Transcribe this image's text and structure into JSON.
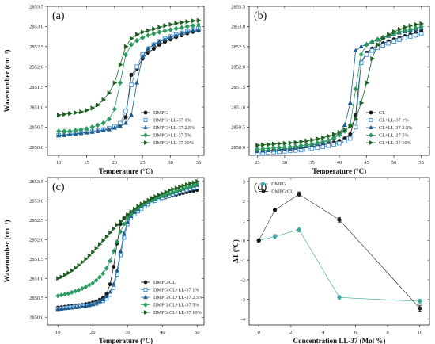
{
  "colors": {
    "black": "#1a1a1a",
    "blue_light": "#3f8fd2",
    "blue_dark": "#1f5c8c",
    "green_mid": "#2a9a5e",
    "green_dark": "#1f5f22",
    "teal": "#3aa6a2"
  },
  "chart_data": [
    {
      "id": "a",
      "type": "line",
      "panel_label": "(a)",
      "xlabel": "Temperature (°C)",
      "ylabel": "Wavenumber (cm⁻¹)",
      "xlim": [
        8,
        36
      ],
      "ylim": [
        2849.8,
        2853.5
      ],
      "xticks": [
        10,
        15,
        20,
        25,
        30,
        35
      ],
      "yticks": [
        2850.0,
        2850.5,
        2851.0,
        2851.5,
        2852.0,
        2852.5,
        2853.0,
        2853.5
      ],
      "ytick_labels": [
        "2850.0",
        "2850.5",
        "2851.0",
        "2851.5",
        "2852.0",
        "2852.5",
        "2853.0",
        "2853.5"
      ],
      "legend_position": "lower-right",
      "x": [
        10,
        11,
        12,
        13,
        14,
        15,
        16,
        17,
        18,
        19,
        20,
        21,
        22,
        23,
        24,
        25,
        26,
        27,
        28,
        29,
        30,
        31,
        32,
        33,
        34,
        35
      ],
      "series": [
        {
          "name": "DMPG",
          "marker": "circle",
          "color": "#1a1a1a",
          "values": [
            2850.3,
            2850.3,
            2850.32,
            2850.34,
            2850.35,
            2850.37,
            2850.39,
            2850.4,
            2850.43,
            2850.46,
            2850.5,
            2850.55,
            2850.75,
            2851.8,
            2851.95,
            2852.2,
            2852.35,
            2852.45,
            2852.55,
            2852.62,
            2852.68,
            2852.74,
            2852.78,
            2852.83,
            2852.87,
            2852.9
          ]
        },
        {
          "name": "DMPG+LL-37 1%",
          "marker": "square",
          "color": "#3f8fd2",
          "values": [
            2850.3,
            2850.31,
            2850.33,
            2850.34,
            2850.36,
            2850.38,
            2850.39,
            2850.41,
            2850.44,
            2850.47,
            2850.52,
            2850.6,
            2850.9,
            2851.55,
            2852.0,
            2852.3,
            2852.45,
            2852.55,
            2852.63,
            2852.7,
            2852.75,
            2852.8,
            2852.84,
            2852.88,
            2852.91,
            2852.95
          ]
        },
        {
          "name": "DMPG+LL-37 2.5%",
          "marker": "triangle-up",
          "color": "#1f5c8c",
          "values": [
            2850.3,
            2850.31,
            2850.32,
            2850.33,
            2850.35,
            2850.36,
            2850.38,
            2850.4,
            2850.42,
            2850.44,
            2850.48,
            2850.52,
            2850.6,
            2850.8,
            2851.6,
            2852.25,
            2852.45,
            2852.55,
            2852.62,
            2852.68,
            2852.73,
            2852.78,
            2852.82,
            2852.86,
            2852.9,
            2852.92
          ]
        },
        {
          "name": "DMPG+LL-37 5%",
          "marker": "diamond",
          "color": "#2a9a5e",
          "values": [
            2850.4,
            2850.4,
            2850.4,
            2850.42,
            2850.44,
            2850.46,
            2850.5,
            2850.55,
            2850.6,
            2850.7,
            2850.95,
            2851.6,
            2852.3,
            2852.55,
            2852.65,
            2852.72,
            2852.78,
            2852.82,
            2852.86,
            2852.89,
            2852.92,
            2852.95,
            2852.97,
            2853.0,
            2853.02,
            2853.04
          ]
        },
        {
          "name": "DMPG+LL-37 10%",
          "marker": "triangle-right",
          "color": "#1f5f22",
          "values": [
            2850.8,
            2850.82,
            2850.84,
            2850.86,
            2850.88,
            2850.92,
            2850.97,
            2851.05,
            2851.18,
            2851.35,
            2851.6,
            2852.05,
            2852.5,
            2852.7,
            2852.8,
            2852.86,
            2852.9,
            2852.94,
            2852.98,
            2853.02,
            2853.05,
            2853.08,
            2853.1,
            2853.12,
            2853.14,
            2853.15
          ]
        }
      ]
    },
    {
      "id": "b",
      "type": "line",
      "panel_label": "(b)",
      "xlabel": "Temperature (°C)",
      "ylabel": "",
      "xlim": [
        23.5,
        56.5
      ],
      "ylim": [
        2849.8,
        2853.5
      ],
      "xticks": [
        25,
        30,
        35,
        40,
        45,
        50,
        55
      ],
      "yticks": [
        2850.0,
        2850.5,
        2851.0,
        2851.5,
        2852.0,
        2852.5,
        2853.0,
        2853.5
      ],
      "ytick_labels": [
        "2850.0",
        "2850.5",
        "2851.0",
        "2851.5",
        "2852.0",
        "2852.5",
        "2853.0",
        "2853.5"
      ],
      "legend_position": "lower-right",
      "x": [
        25,
        26,
        27,
        28,
        29,
        30,
        31,
        32,
        33,
        34,
        35,
        36,
        37,
        38,
        39,
        40,
        41,
        42,
        43,
        44,
        45,
        46,
        47,
        48,
        49,
        50,
        51,
        52,
        53,
        54,
        55
      ],
      "series": [
        {
          "name": "CL",
          "marker": "circle",
          "color": "#1a1a1a",
          "values": [
            2849.9,
            2849.91,
            2849.92,
            2849.93,
            2849.94,
            2849.95,
            2849.96,
            2849.97,
            2849.98,
            2850.0,
            2850.02,
            2850.04,
            2850.06,
            2850.09,
            2850.12,
            2850.16,
            2850.22,
            2850.32,
            2850.8,
            2852.1,
            2852.35,
            2852.45,
            2852.52,
            2852.58,
            2852.63,
            2852.68,
            2852.72,
            2852.76,
            2852.8,
            2852.84,
            2852.88
          ]
        },
        {
          "name": "CL+LL-37 1%",
          "marker": "square",
          "color": "#3f8fd2",
          "values": [
            2849.85,
            2849.86,
            2849.87,
            2849.88,
            2849.89,
            2849.9,
            2849.91,
            2849.92,
            2849.93,
            2849.95,
            2849.97,
            2849.99,
            2850.01,
            2850.04,
            2850.07,
            2850.1,
            2850.15,
            2850.22,
            2850.5,
            2852.1,
            2852.3,
            2852.4,
            2852.47,
            2852.53,
            2852.58,
            2852.63,
            2852.67,
            2852.71,
            2852.75,
            2852.78,
            2852.82
          ]
        },
        {
          "name": "CL+LL-37 2.5%",
          "marker": "triangle-up",
          "color": "#1f5c8c",
          "values": [
            2849.9,
            2849.91,
            2849.92,
            2849.93,
            2849.94,
            2849.95,
            2849.96,
            2849.98,
            2850.0,
            2850.02,
            2850.05,
            2850.08,
            2850.12,
            2850.17,
            2850.24,
            2850.35,
            2850.55,
            2851.1,
            2852.4,
            2852.5,
            2852.56,
            2852.62,
            2852.67,
            2852.72,
            2852.76,
            2852.8,
            2852.84,
            2852.87,
            2852.9,
            2852.93,
            2852.96
          ]
        },
        {
          "name": "CL+LL-37 5%",
          "marker": "diamond",
          "color": "#2a9a5e",
          "values": [
            2849.95,
            2849.96,
            2849.97,
            2849.98,
            2849.99,
            2850.0,
            2850.01,
            2850.02,
            2850.04,
            2850.06,
            2850.08,
            2850.11,
            2850.14,
            2850.18,
            2850.23,
            2850.3,
            2850.4,
            2850.55,
            2851.45,
            2852.3,
            2852.55,
            2852.62,
            2852.68,
            2852.73,
            2852.78,
            2852.82,
            2852.86,
            2852.9,
            2852.93,
            2852.96,
            2852.99
          ]
        },
        {
          "name": "CL+LL-37 10%",
          "marker": "triangle-right",
          "color": "#1f5f22",
          "values": [
            2850.05,
            2850.06,
            2850.07,
            2850.08,
            2850.09,
            2850.1,
            2850.11,
            2850.12,
            2850.14,
            2850.16,
            2850.18,
            2850.21,
            2850.24,
            2850.28,
            2850.32,
            2850.37,
            2850.43,
            2850.52,
            2850.7,
            2851.1,
            2851.6,
            2852.2,
            2852.55,
            2852.7,
            2852.8,
            2852.87,
            2852.93,
            2852.98,
            2853.02,
            2853.05,
            2853.07
          ]
        }
      ]
    },
    {
      "id": "c",
      "type": "line",
      "panel_label": "(c)",
      "xlabel": "Temperature (°C)",
      "ylabel": "Wavenumber (cm⁻¹)",
      "xlim": [
        7,
        52
      ],
      "ylim": [
        2849.8,
        2853.6
      ],
      "xticks": [
        10,
        20,
        30,
        40,
        50
      ],
      "yticks": [
        2850.0,
        2850.5,
        2851.0,
        2851.5,
        2852.0,
        2852.5,
        2853.0,
        2853.5
      ],
      "ytick_labels": [
        "2850.0",
        "2850.5",
        "2851.0",
        "2851.5",
        "2852.0",
        "2852.5",
        "2853.0",
        "2853.5"
      ],
      "legend_position": "lower-right",
      "x": [
        10,
        11,
        12,
        13,
        14,
        15,
        16,
        17,
        18,
        19,
        20,
        21,
        22,
        23,
        24,
        25,
        26,
        27,
        28,
        29,
        30,
        31,
        32,
        33,
        34,
        35,
        36,
        37,
        38,
        39,
        40,
        41,
        42,
        43,
        44,
        45,
        46,
        47,
        48,
        49,
        50
      ],
      "series": [
        {
          "name": "DMPG:CL",
          "marker": "circle",
          "color": "#1a1a1a",
          "values": [
            2850.25,
            2850.26,
            2850.27,
            2850.28,
            2850.29,
            2850.3,
            2850.31,
            2850.32,
            2850.34,
            2850.36,
            2850.38,
            2850.41,
            2850.45,
            2850.5,
            2850.6,
            2850.85,
            2851.3,
            2851.9,
            2852.4,
            2852.55,
            2852.63,
            2852.7,
            2852.76,
            2852.81,
            2852.86,
            2852.9,
            2852.94,
            2852.98,
            2853.01,
            2853.04,
            2853.07,
            2853.09,
            2853.12,
            2853.14,
            2853.16,
            2853.18,
            2853.2,
            2853.22,
            2853.24,
            2853.26,
            2853.28
          ]
        },
        {
          "name": "DMPG:CL+LL-37 1%",
          "marker": "square",
          "color": "#3f8fd2",
          "values": [
            2850.22,
            2850.23,
            2850.24,
            2850.25,
            2850.26,
            2850.27,
            2850.28,
            2850.29,
            2850.3,
            2850.31,
            2850.33,
            2850.35,
            2850.38,
            2850.42,
            2850.48,
            2850.58,
            2850.75,
            2851.1,
            2851.6,
            2852.05,
            2852.4,
            2852.55,
            2852.65,
            2852.73,
            2852.8,
            2852.86,
            2852.91,
            2852.96,
            2853.0,
            2853.04,
            2853.08,
            2853.11,
            2853.14,
            2853.17,
            2853.2,
            2853.23,
            2853.26,
            2853.28,
            2853.31,
            2853.33,
            2853.35
          ]
        },
        {
          "name": "DMPG:CL+LL-37 2.5%",
          "marker": "triangle-up",
          "color": "#1f5c8c",
          "values": [
            2850.2,
            2850.21,
            2850.22,
            2850.23,
            2850.24,
            2850.25,
            2850.26,
            2850.27,
            2850.29,
            2850.31,
            2850.33,
            2850.36,
            2850.4,
            2850.45,
            2850.53,
            2850.65,
            2850.85,
            2851.2,
            2851.7,
            2852.15,
            2852.45,
            2852.6,
            2852.7,
            2852.78,
            2852.85,
            2852.9,
            2852.95,
            2853.0,
            2853.04,
            2853.08,
            2853.12,
            2853.15,
            2853.18,
            2853.21,
            2853.24,
            2853.27,
            2853.3,
            2853.33,
            2853.36,
            2853.38,
            2853.4
          ]
        },
        {
          "name": "DMPG:CL+LL-37 5%",
          "marker": "diamond",
          "color": "#2a9a5e",
          "values": [
            2850.55,
            2850.57,
            2850.59,
            2850.61,
            2850.64,
            2850.67,
            2850.7,
            2850.74,
            2850.78,
            2850.83,
            2850.88,
            2850.95,
            2851.03,
            2851.13,
            2851.26,
            2851.45,
            2851.7,
            2851.95,
            2852.2,
            2852.4,
            2852.55,
            2852.66,
            2852.75,
            2852.82,
            2852.88,
            2852.93,
            2852.98,
            2853.02,
            2853.06,
            2853.1,
            2853.13,
            2853.16,
            2853.19,
            2853.22,
            2853.25,
            2853.28,
            2853.31,
            2853.34,
            2853.37,
            2853.4,
            2853.43
          ]
        },
        {
          "name": "DMPG:CL+LL-37 10%",
          "marker": "triangle-right",
          "color": "#1f5f22",
          "values": [
            2851.0,
            2851.04,
            2851.09,
            2851.14,
            2851.2,
            2851.27,
            2851.34,
            2851.42,
            2851.5,
            2851.59,
            2851.68,
            2851.78,
            2851.88,
            2851.98,
            2852.08,
            2852.18,
            2852.28,
            2852.38,
            2852.47,
            2852.56,
            2852.64,
            2852.72,
            2852.79,
            2852.86,
            2852.92,
            2852.97,
            2853.02,
            2853.07,
            2853.11,
            2853.15,
            2853.19,
            2853.23,
            2853.27,
            2853.3,
            2853.33,
            2853.36,
            2853.39,
            2853.42,
            2853.45,
            2853.47,
            2853.5
          ]
        }
      ]
    },
    {
      "id": "d",
      "type": "line",
      "panel_label": "(d)",
      "xlabel": "Concentration LL-37 (Mol %)",
      "ylabel": "ΔT (°C)",
      "xlim": [
        -0.6,
        10.6
      ],
      "ylim": [
        -4.3,
        3.2
      ],
      "xticks": [
        0,
        2,
        4,
        6,
        8,
        10
      ],
      "yticks": [
        -4,
        -3,
        -2,
        -1,
        0,
        1,
        2,
        3
      ],
      "legend_position": "top-left",
      "x": [
        0,
        1,
        2.5,
        5,
        10
      ],
      "series": [
        {
          "name": "DMPG",
          "marker": "diamond",
          "color": "#3aa6a2",
          "values": [
            0,
            0.2,
            0.55,
            -2.9,
            -3.1
          ],
          "errors": [
            0.07,
            0.1,
            0.12,
            0.1,
            0.12
          ]
        },
        {
          "name": "DMPG:CL",
          "marker": "circle",
          "color": "#1a1a1a",
          "values": [
            0,
            1.55,
            2.35,
            1.05,
            -3.45
          ],
          "errors": [
            0.08,
            0.1,
            0.12,
            0.12,
            0.15
          ]
        }
      ]
    }
  ]
}
